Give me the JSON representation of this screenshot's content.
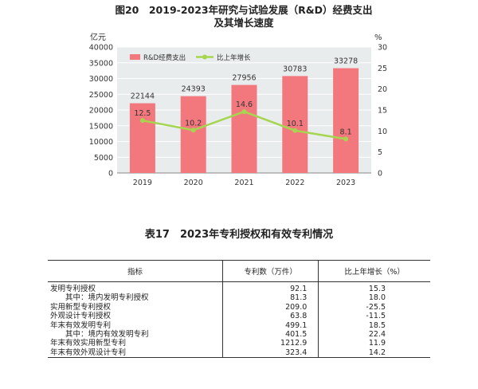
{
  "chart_data": {
    "type": "bar",
    "title": "图20　2019-2023年研究与试验发展（R&D）经费支出",
    "title_line2": "及其增长速度",
    "ylabel_left": "亿元",
    "ylabel_right": "%",
    "categories": [
      "2019",
      "2020",
      "2021",
      "2022",
      "2023"
    ],
    "series": [
      {
        "name": "R&D经费支出",
        "type": "bar",
        "axis": "left",
        "color": "#f2787e",
        "values": [
          22144,
          24393,
          27956,
          30783,
          33278
        ]
      },
      {
        "name": "比上年增长",
        "type": "line",
        "axis": "right",
        "color": "#a6d650",
        "values": [
          12.5,
          10.2,
          14.6,
          10.1,
          8.1
        ]
      }
    ],
    "ylim_left": [
      0,
      40000
    ],
    "yticks_left": [
      "0",
      "5000",
      "10000",
      "15000",
      "20000",
      "25000",
      "30000",
      "35000",
      "40000"
    ],
    "ylim_right": [
      0,
      30
    ],
    "yticks_right": [
      "0",
      "5",
      "10",
      "15",
      "20",
      "25",
      "30"
    ],
    "grid": true,
    "legend_position": "top-left",
    "plot_background": "#e8eced",
    "value_labels_bars": [
      "22144",
      "24393",
      "27956",
      "30783",
      "33278"
    ],
    "value_labels_line": [
      "12.5",
      "10.2",
      "14.6",
      "10.1",
      "8.1"
    ]
  },
  "table": {
    "title": "表17　2023年专利授权和有效专利情况",
    "headers": [
      "指标",
      "专利数（万件）",
      "比上年增长（%）"
    ],
    "rows": [
      {
        "name": "发明专利授权",
        "indent": false,
        "value": "92.1",
        "growth": "15.3"
      },
      {
        "name": "其中：境内发明专利授权",
        "indent": true,
        "value": "81.3",
        "growth": "18.0"
      },
      {
        "name": "实用新型专利授权",
        "indent": false,
        "value": "209.0",
        "growth": "-25.5"
      },
      {
        "name": "外观设计专利授权",
        "indent": false,
        "value": "63.8",
        "growth": "-11.5"
      },
      {
        "name": "年末有效发明专利",
        "indent": false,
        "value": "499.1",
        "growth": "18.5"
      },
      {
        "name": "其中：境内有效发明专利",
        "indent": true,
        "value": "401.5",
        "growth": "22.4"
      },
      {
        "name": "年末有效实用新型专利",
        "indent": false,
        "value": "1212.9",
        "growth": "11.9"
      },
      {
        "name": "年末有效外观设计专利",
        "indent": false,
        "value": "323.4",
        "growth": "14.2"
      }
    ]
  }
}
